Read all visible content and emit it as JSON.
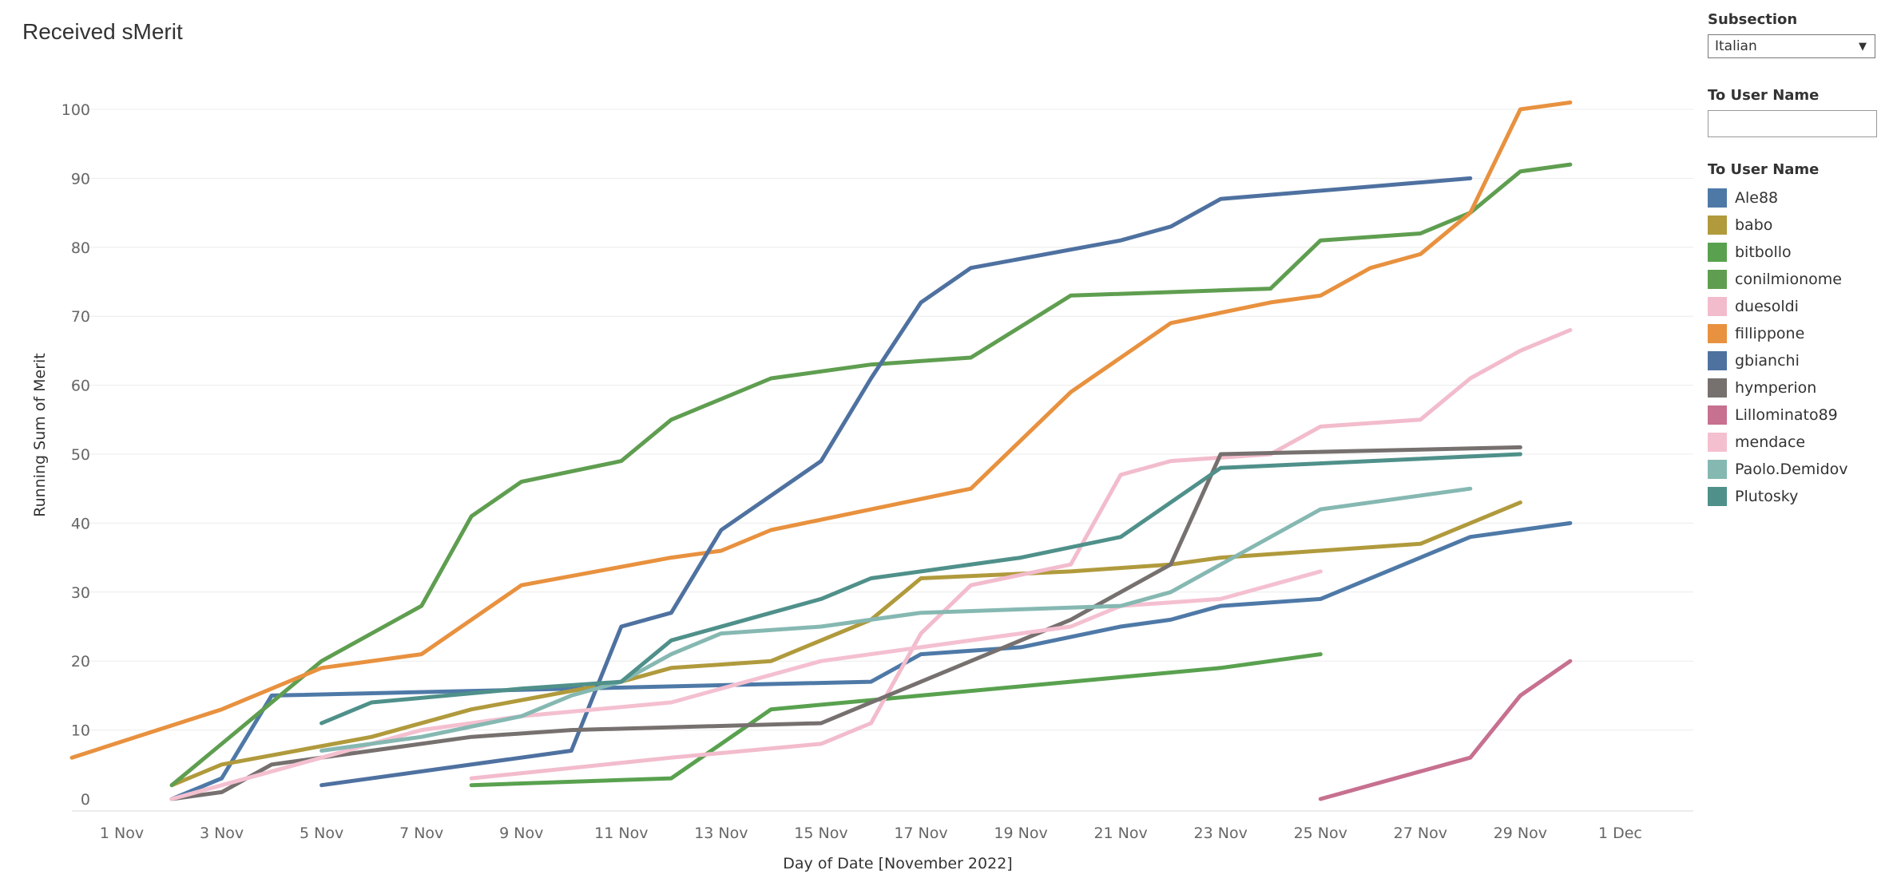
{
  "page_title": "Received sMerit",
  "filters": {
    "subsection_label": "Subsection",
    "subsection_value": "Italian",
    "user_search_label": "To User Name",
    "user_search_value": "",
    "legend_title": "To User Name"
  },
  "chart_data": {
    "type": "line",
    "title": "Received sMerit",
    "xlabel": "Day of Date [November 2022]",
    "ylabel": "Running Sum of Merit",
    "x_unit": "day of November 2022 (31 = 1 Dec)",
    "xlim": [
      0,
      31
    ],
    "ylim": [
      0,
      100
    ],
    "x_ticks": [
      {
        "day": 1,
        "label": "1 Nov"
      },
      {
        "day": 3,
        "label": "3 Nov"
      },
      {
        "day": 5,
        "label": "5 Nov"
      },
      {
        "day": 7,
        "label": "7 Nov"
      },
      {
        "day": 9,
        "label": "9 Nov"
      },
      {
        "day": 11,
        "label": "11 Nov"
      },
      {
        "day": 13,
        "label": "13 Nov"
      },
      {
        "day": 15,
        "label": "15 Nov"
      },
      {
        "day": 17,
        "label": "17 Nov"
      },
      {
        "day": 19,
        "label": "19 Nov"
      },
      {
        "day": 21,
        "label": "21 Nov"
      },
      {
        "day": 23,
        "label": "23 Nov"
      },
      {
        "day": 25,
        "label": "25 Nov"
      },
      {
        "day": 27,
        "label": "27 Nov"
      },
      {
        "day": 29,
        "label": "29 Nov"
      },
      {
        "day": 31,
        "label": "1 Dec"
      }
    ],
    "y_ticks": [
      0,
      10,
      20,
      30,
      40,
      50,
      60,
      70,
      80,
      90,
      100
    ],
    "grid": "horizontal",
    "legend": "right",
    "series": [
      {
        "name": "Ale88",
        "color": "#4e79a7",
        "points": [
          [
            2,
            0
          ],
          [
            3,
            3
          ],
          [
            4,
            15
          ],
          [
            10,
            16
          ],
          [
            16,
            17
          ],
          [
            17,
            21
          ],
          [
            19,
            22
          ],
          [
            21,
            25
          ],
          [
            22,
            26
          ],
          [
            23,
            28
          ],
          [
            25,
            29
          ],
          [
            28,
            38
          ],
          [
            30,
            40
          ]
        ]
      },
      {
        "name": "babo",
        "color": "#b09a3c",
        "points": [
          [
            2,
            2
          ],
          [
            3,
            5
          ],
          [
            6,
            9
          ],
          [
            8,
            13
          ],
          [
            11,
            17
          ],
          [
            12,
            19
          ],
          [
            14,
            20
          ],
          [
            16,
            26
          ],
          [
            17,
            32
          ],
          [
            20,
            33
          ],
          [
            22,
            34
          ],
          [
            23,
            35
          ],
          [
            27,
            37
          ],
          [
            29,
            43
          ]
        ]
      },
      {
        "name": "bitbollo",
        "color": "#59a14f",
        "points": [
          [
            8,
            2
          ],
          [
            12,
            3
          ],
          [
            13,
            8
          ],
          [
            14,
            13
          ],
          [
            17,
            15
          ],
          [
            23,
            19
          ],
          [
            25,
            21
          ]
        ]
      },
      {
        "name": "conilmionome",
        "color": "#5f9e50",
        "points": [
          [
            2,
            2
          ],
          [
            5,
            20
          ],
          [
            7,
            28
          ],
          [
            8,
            41
          ],
          [
            9,
            46
          ],
          [
            11,
            49
          ],
          [
            12,
            55
          ],
          [
            14,
            61
          ],
          [
            16,
            63
          ],
          [
            18,
            64
          ],
          [
            20,
            73
          ],
          [
            24,
            74
          ],
          [
            25,
            81
          ],
          [
            27,
            82
          ],
          [
            28,
            85
          ],
          [
            29,
            91
          ],
          [
            30,
            92
          ]
        ]
      },
      {
        "name": "duesoldi",
        "color": "#f2bccc",
        "points": [
          [
            8,
            3
          ],
          [
            12,
            6
          ],
          [
            15,
            8
          ],
          [
            16,
            11
          ],
          [
            17,
            24
          ],
          [
            18,
            31
          ],
          [
            20,
            34
          ],
          [
            21,
            47
          ],
          [
            22,
            49
          ],
          [
            24,
            50
          ],
          [
            25,
            54
          ],
          [
            27,
            55
          ],
          [
            28,
            61
          ],
          [
            29,
            65
          ],
          [
            30,
            68
          ]
        ]
      },
      {
        "name": "fillippone",
        "color": "#e8913f",
        "points": [
          [
            0,
            6
          ],
          [
            3,
            13
          ],
          [
            5,
            19
          ],
          [
            7,
            21
          ],
          [
            9,
            31
          ],
          [
            12,
            35
          ],
          [
            13,
            36
          ],
          [
            14,
            39
          ],
          [
            18,
            45
          ],
          [
            20,
            59
          ],
          [
            22,
            69
          ],
          [
            24,
            72
          ],
          [
            25,
            73
          ],
          [
            26,
            77
          ],
          [
            27,
            79
          ],
          [
            28,
            85
          ],
          [
            29,
            100
          ],
          [
            30,
            101
          ]
        ]
      },
      {
        "name": "gbianchi",
        "color": "#4e71a0",
        "points": [
          [
            5,
            2
          ],
          [
            10,
            7
          ],
          [
            11,
            25
          ],
          [
            12,
            27
          ],
          [
            13,
            39
          ],
          [
            15,
            49
          ],
          [
            16,
            61
          ],
          [
            17,
            72
          ],
          [
            18,
            77
          ],
          [
            21,
            81
          ],
          [
            22,
            83
          ],
          [
            23,
            87
          ],
          [
            28,
            90
          ]
        ]
      },
      {
        "name": "hymperion",
        "color": "#76706f",
        "points": [
          [
            2,
            0
          ],
          [
            3,
            1
          ],
          [
            4,
            5
          ],
          [
            8,
            9
          ],
          [
            10,
            10
          ],
          [
            15,
            11
          ],
          [
            17,
            17
          ],
          [
            20,
            26
          ],
          [
            21,
            30
          ],
          [
            22,
            34
          ],
          [
            23,
            50
          ],
          [
            29,
            51
          ]
        ]
      },
      {
        "name": "Lillominato89",
        "color": "#c7708f",
        "points": [
          [
            25,
            0
          ],
          [
            28,
            6
          ],
          [
            29,
            15
          ],
          [
            30,
            20
          ]
        ]
      },
      {
        "name": "mendace",
        "color": "#f4c0d0",
        "points": [
          [
            2,
            0
          ],
          [
            5,
            6
          ],
          [
            7,
            10
          ],
          [
            9,
            12
          ],
          [
            12,
            14
          ],
          [
            15,
            20
          ],
          [
            17,
            22
          ],
          [
            19,
            24
          ],
          [
            20,
            25
          ],
          [
            21,
            28
          ],
          [
            23,
            29
          ],
          [
            25,
            33
          ]
        ]
      },
      {
        "name": "Paolo.Demidov",
        "color": "#86b8b2",
        "points": [
          [
            5,
            7
          ],
          [
            7,
            9
          ],
          [
            9,
            12
          ],
          [
            10,
            15
          ],
          [
            11,
            17
          ],
          [
            12,
            21
          ],
          [
            13,
            24
          ],
          [
            15,
            25
          ],
          [
            17,
            27
          ],
          [
            21,
            28
          ],
          [
            22,
            30
          ],
          [
            25,
            42
          ],
          [
            28,
            45
          ]
        ]
      },
      {
        "name": "Plutosky",
        "color": "#4f908a",
        "points": [
          [
            5,
            11
          ],
          [
            6,
            14
          ],
          [
            9,
            16
          ],
          [
            11,
            17
          ],
          [
            12,
            23
          ],
          [
            14,
            27
          ],
          [
            15,
            29
          ],
          [
            16,
            32
          ],
          [
            19,
            35
          ],
          [
            21,
            38
          ],
          [
            23,
            48
          ],
          [
            29,
            50
          ]
        ]
      }
    ]
  }
}
